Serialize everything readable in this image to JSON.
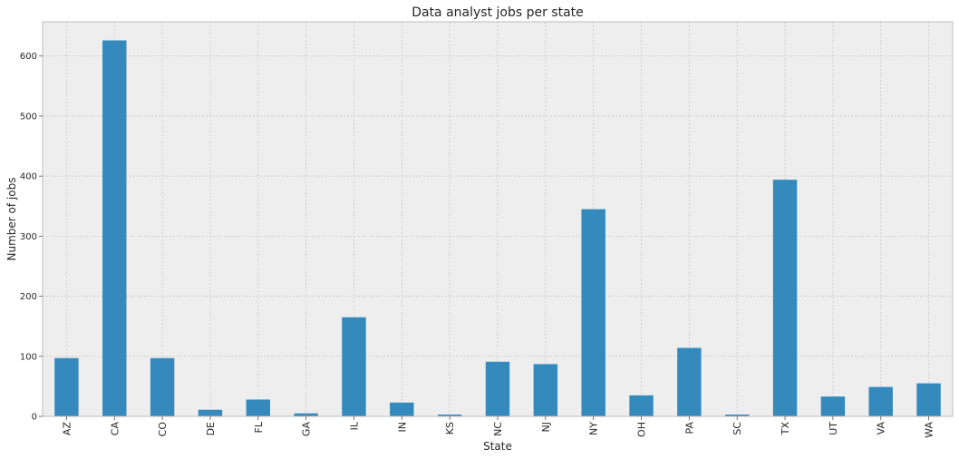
{
  "chart_data": {
    "type": "bar",
    "title": "Data analyst jobs per state",
    "xlabel": "State",
    "ylabel": "Number of jobs",
    "categories": [
      "AZ",
      "CA",
      "CO",
      "DE",
      "FL",
      "GA",
      "IL",
      "IN",
      "KS",
      "NC",
      "NJ",
      "NY",
      "OH",
      "PA",
      "SC",
      "TX",
      "UT",
      "VA",
      "WA"
    ],
    "values": [
      97,
      626,
      97,
      11,
      28,
      5,
      165,
      23,
      3,
      91,
      87,
      345,
      35,
      114,
      3,
      394,
      33,
      49,
      55
    ],
    "ylim": [
      0,
      657
    ],
    "yticks": [
      "0",
      "100",
      "200",
      "300",
      "400",
      "500",
      "600"
    ],
    "grid": true,
    "colors": {
      "bar": "#348abd",
      "plot_bg": "#eeeeee",
      "grid": "#c8c8c8",
      "frame": "#bcbcbc"
    }
  }
}
